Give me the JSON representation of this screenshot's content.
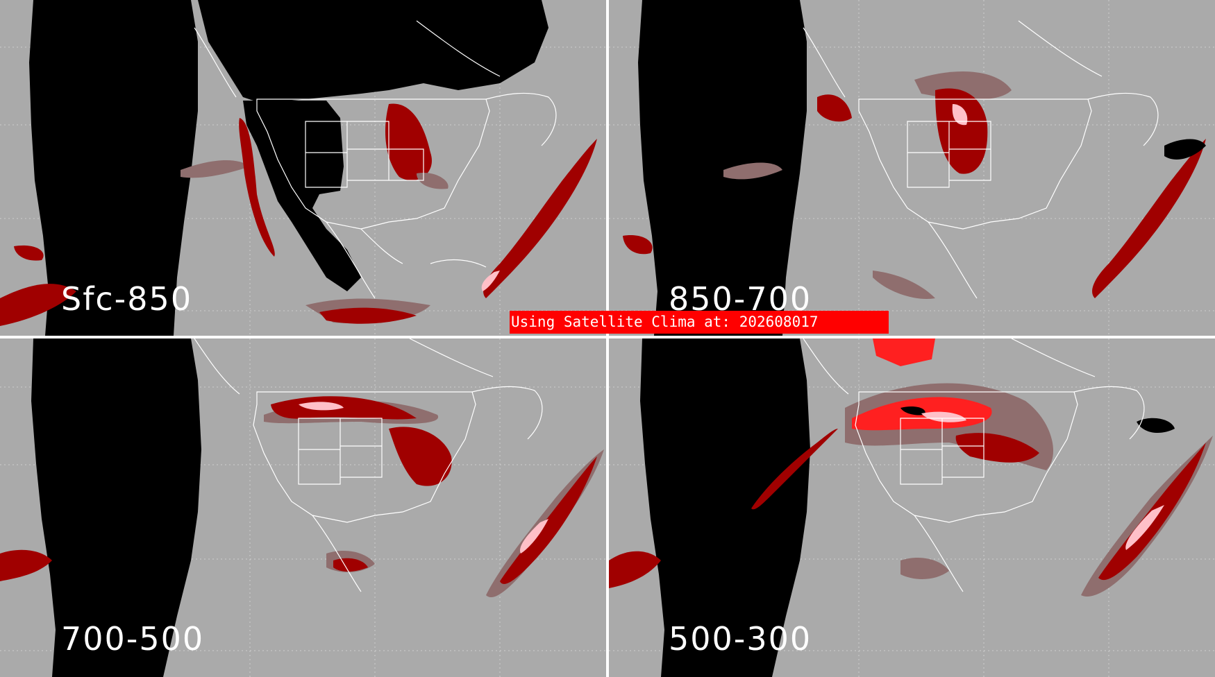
{
  "colors": {
    "background": "#aaaaaa",
    "nodata": "#000000",
    "boundaries": "#ffffff",
    "category_low": "#8f6e6e",
    "category_mid": "#a00000",
    "category_high": "#ff2020",
    "category_peak": "#ffc0c8"
  },
  "panels": [
    {
      "id": "sfc-850",
      "label": "Sfc-850"
    },
    {
      "id": "850-700",
      "label": "850-700"
    },
    {
      "id": "700-500",
      "label": "700-500"
    },
    {
      "id": "500-300",
      "label": "500-300"
    }
  ],
  "banner": {
    "text": "Using Satellite Clima at: 202608017"
  }
}
